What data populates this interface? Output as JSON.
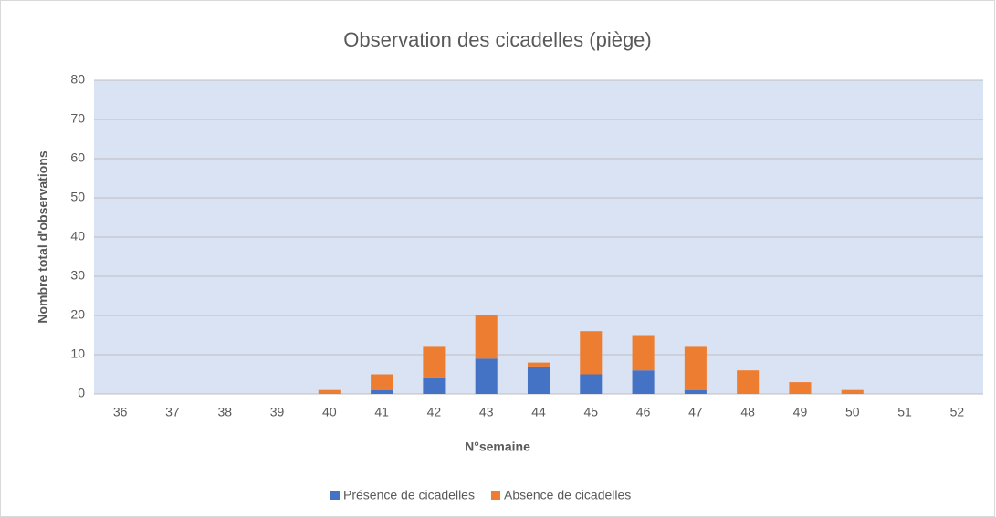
{
  "chart_data": {
    "type": "bar",
    "stacked": true,
    "title": "Observation des cicadelles (piège)",
    "x_label": "N°semaine",
    "y_label": "Nombre total d'observations",
    "categories": [
      "36",
      "37",
      "38",
      "39",
      "40",
      "41",
      "42",
      "43",
      "44",
      "45",
      "46",
      "47",
      "48",
      "49",
      "50",
      "51",
      "52"
    ],
    "series": [
      {
        "name": "Présence de cicadelles",
        "color": "#4472c4",
        "values": [
          0,
          0,
          0,
          0,
          0,
          1,
          4,
          9,
          7,
          5,
          6,
          1,
          0,
          0,
          0,
          0,
          0
        ]
      },
      {
        "name": "Absence de cicadelles",
        "color": "#ed7d31",
        "values": [
          0,
          0,
          0,
          0,
          1,
          4,
          8,
          11,
          1,
          11,
          9,
          11,
          6,
          3,
          1,
          0,
          0
        ]
      }
    ],
    "ylim": [
      0,
      80
    ],
    "yticks": [
      0,
      10,
      20,
      30,
      40,
      50,
      60,
      70,
      80
    ],
    "grid": true,
    "legend": "bottom"
  }
}
